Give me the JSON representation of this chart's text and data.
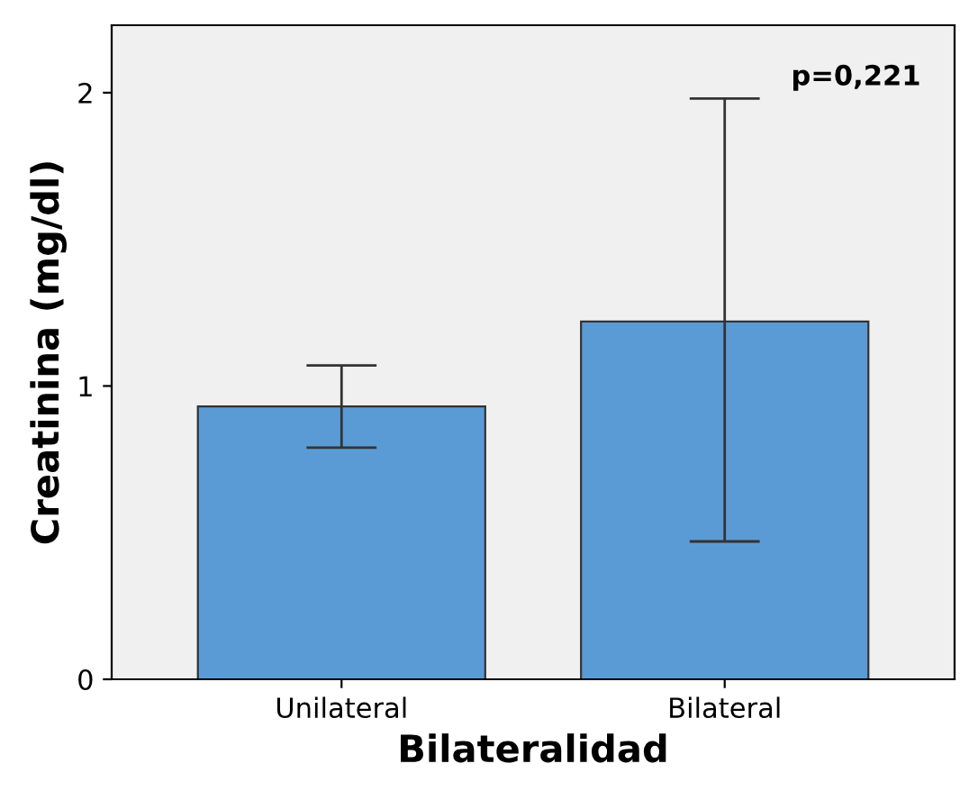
{
  "chart_data": {
    "type": "bar",
    "xlabel": "Bilateralidad",
    "ylabel": "Creatinina (mg/dl)",
    "categories": [
      "Unilateral",
      "Bilateral"
    ],
    "values": [
      0.93,
      1.22
    ],
    "color": "#5b9bd5",
    "errors": [
      [
        0.79,
        1.07
      ],
      [
        0.47,
        1.98
      ]
    ],
    "ylim": [
      0,
      2.23
    ],
    "yticks": [
      0,
      1,
      2
    ],
    "grid": false,
    "annotations": [
      "p=0,221"
    ]
  }
}
